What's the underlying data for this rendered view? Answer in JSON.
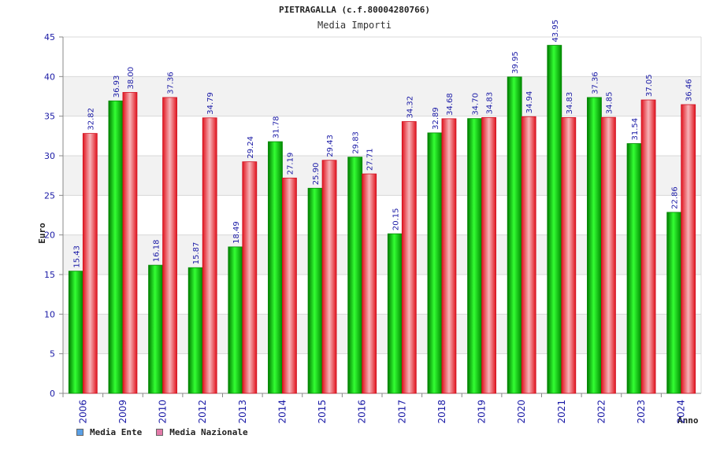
{
  "chart_data": {
    "type": "bar",
    "title": "PIETRAGALLA (c.f.80004280766)",
    "subtitle": "Media Importi",
    "xlabel": "Anno",
    "ylabel": "Euro",
    "ylim": [
      0,
      45
    ],
    "yticks": [
      0,
      5,
      10,
      15,
      20,
      25,
      30,
      35,
      40,
      45
    ],
    "grid": true,
    "legend_position": "bottom-left",
    "categories": [
      "2006",
      "2009",
      "2010",
      "2012",
      "2013",
      "2014",
      "2015",
      "2016",
      "2017",
      "2018",
      "2019",
      "2020",
      "2021",
      "2022",
      "2023",
      "2024"
    ],
    "series": [
      {
        "name": "Media Ente",
        "color": "#00c000",
        "legend_color": "#5aa0e6",
        "values": [
          15.43,
          36.93,
          16.18,
          15.87,
          18.49,
          31.78,
          25.9,
          29.83,
          20.15,
          32.89,
          34.7,
          39.95,
          43.95,
          37.36,
          31.54,
          22.86
        ],
        "labels": [
          "15.43",
          "36.93",
          "16.18",
          "15.87",
          "18.49",
          "31.78",
          "25.90",
          "29.83",
          "20.15",
          "32.89",
          "34.70",
          "39.95",
          "43.95",
          "37.36",
          "31.54",
          "22.86"
        ]
      },
      {
        "name": "Media Nazionale",
        "color": "#e8202a",
        "legend_color": "#e27aa8",
        "values": [
          32.82,
          38.0,
          37.36,
          34.79,
          29.24,
          27.19,
          29.43,
          27.71,
          34.32,
          34.68,
          34.83,
          34.94,
          34.83,
          34.85,
          37.05,
          36.46
        ],
        "labels": [
          "32.82",
          "38.00",
          "37.36",
          "34.79",
          "29.24",
          "27.19",
          "29.43",
          "27.71",
          "34.32",
          "34.68",
          "34.83",
          "34.94",
          "34.83",
          "34.85",
          "37.05",
          "36.46"
        ]
      }
    ]
  }
}
